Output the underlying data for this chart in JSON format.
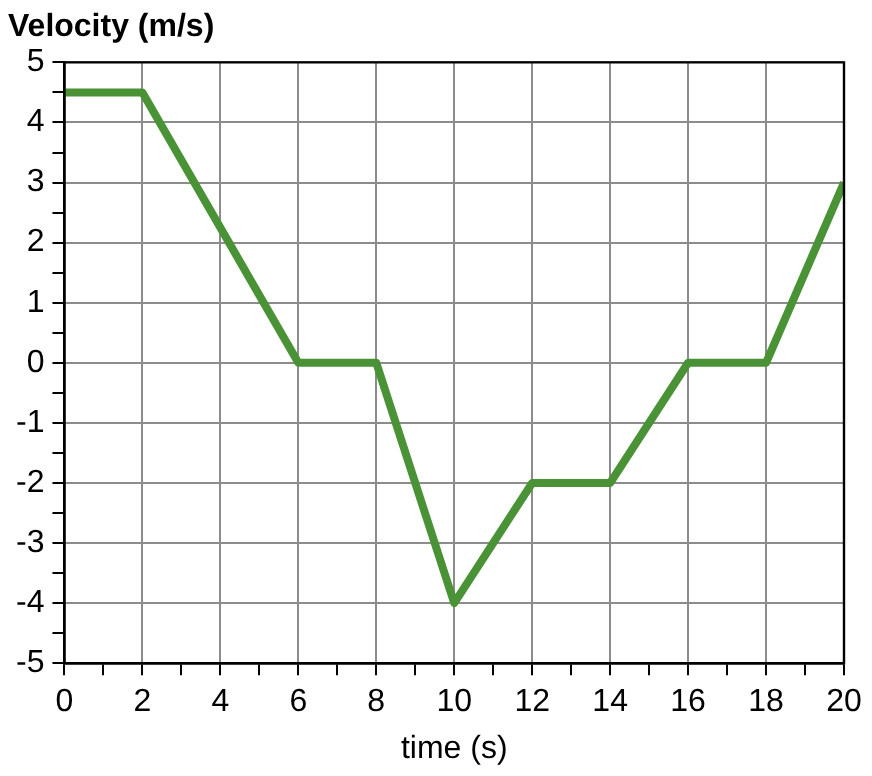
{
  "chart_data": {
    "type": "line",
    "ylabel": "Velocity (m/s)",
    "xlabel": "time (s)",
    "x": [
      0,
      2,
      6,
      8,
      10,
      12,
      14,
      16,
      18,
      20
    ],
    "series": [
      {
        "color": "#4a9236",
        "values": [
          4.5,
          4.5,
          0,
          0,
          -4,
          -2,
          -2,
          0,
          0,
          3
        ]
      }
    ],
    "xlim": [
      0,
      20
    ],
    "ylim": [
      -5,
      5
    ],
    "xticks": [
      0,
      {
        "value": 1,
        "label": null
      },
      2,
      {
        "value": 3,
        "label": null
      },
      4,
      {
        "value": 5,
        "label": null
      },
      6,
      {
        "value": 7,
        "label": null
      },
      8,
      {
        "value": 9,
        "label": null
      },
      10,
      {
        "value": 11,
        "label": null
      },
      12,
      {
        "value": 13,
        "label": null
      },
      14,
      {
        "value": 15,
        "label": null
      },
      16,
      {
        "value": 17,
        "label": null
      },
      18,
      {
        "value": 19,
        "label": null
      },
      20
    ],
    "yticks": [
      -5,
      {
        "value": -4.5,
        "label": null
      },
      -4,
      {
        "value": -3.5,
        "label": null
      },
      -3,
      {
        "value": -2.5,
        "label": null
      },
      -2,
      {
        "value": -1.5,
        "label": null
      },
      -1,
      {
        "value": -0.5,
        "label": null
      },
      0,
      {
        "value": 0.5,
        "label": null
      },
      1,
      {
        "value": 1.5,
        "label": null
      },
      2,
      {
        "value": 2.5,
        "label": null
      },
      3,
      {
        "value": 3.5,
        "label": null
      },
      4,
      {
        "value": 4.5,
        "label": null
      },
      5
    ],
    "grid": true,
    "legend": false,
    "marker": "none",
    "line_style": "solid"
  }
}
